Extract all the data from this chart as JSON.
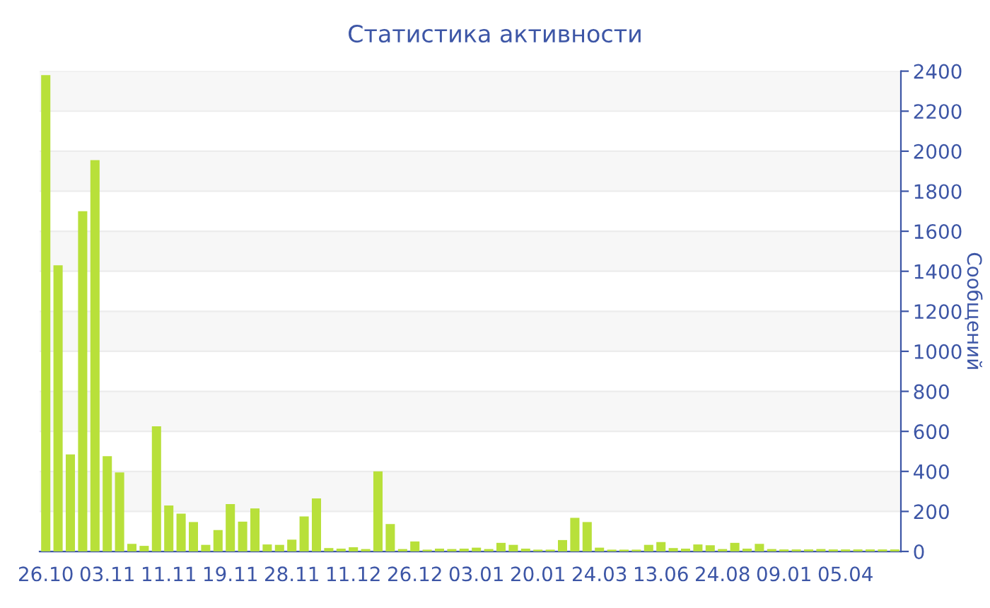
{
  "chart_data": {
    "type": "bar",
    "title": "Статистика активности",
    "ylabel": "Сообщений",
    "categories": [
      "26.10",
      null,
      null,
      null,
      null,
      "03.11",
      null,
      null,
      null,
      null,
      "11.11",
      null,
      null,
      null,
      null,
      "19.11",
      null,
      null,
      null,
      null,
      "28.11",
      null,
      null,
      null,
      null,
      "11.12",
      null,
      null,
      null,
      null,
      "26.12",
      null,
      null,
      null,
      null,
      "03.01",
      null,
      null,
      null,
      null,
      "20.01",
      null,
      null,
      null,
      null,
      "24.03",
      null,
      null,
      null,
      null,
      "13.06",
      null,
      null,
      null,
      null,
      "24.08",
      null,
      null,
      null,
      null,
      "09.01",
      null,
      null,
      null,
      null,
      "05.04",
      null,
      null,
      null,
      null
    ],
    "values": [
      2380,
      1430,
      485,
      1700,
      1955,
      476,
      395,
      38,
      28,
      625,
      230,
      189,
      147,
      33,
      107,
      237,
      149,
      215,
      35,
      33,
      59,
      175,
      265,
      17,
      14,
      21,
      12,
      400,
      137,
      12,
      50,
      9,
      14,
      12,
      14,
      19,
      12,
      43,
      33,
      14,
      9,
      9,
      57,
      168,
      147,
      19,
      9,
      9,
      9,
      33,
      47,
      17,
      14,
      35,
      31,
      12,
      43,
      14,
      38,
      12,
      10,
      10,
      10,
      12,
      10,
      10,
      10,
      10,
      10,
      10
    ],
    "color": "#b8e03a",
    "ylim": [
      0,
      2400
    ],
    "yticks": [
      0,
      200,
      400,
      600,
      800,
      1000,
      1200,
      1400,
      1600,
      1800,
      2000,
      2200,
      2400
    ],
    "grid": "y"
  }
}
